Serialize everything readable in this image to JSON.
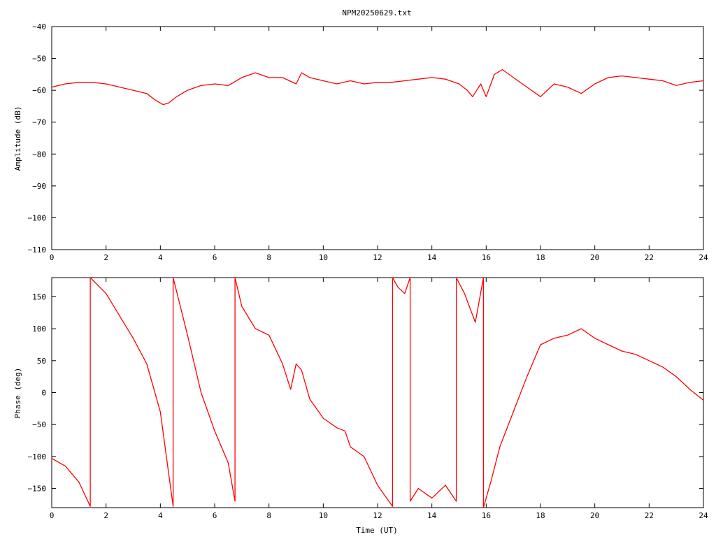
{
  "title": "NPM20250629.txt",
  "line_color": "#ff0000",
  "chart_data": [
    {
      "type": "line",
      "name": "amplitude",
      "title": "NPM20250629.txt",
      "xlabel": "",
      "ylabel": "Amplitude (dB)",
      "xlim": [
        0,
        24
      ],
      "ylim": [
        -110,
        -40
      ],
      "xticks": [
        0,
        2,
        4,
        6,
        8,
        10,
        12,
        14,
        16,
        18,
        20,
        22,
        24
      ],
      "yticks": [
        -40,
        -50,
        -60,
        -70,
        -80,
        -90,
        -100,
        -110
      ],
      "x": [
        0,
        0.5,
        1,
        1.5,
        2,
        2.5,
        3,
        3.5,
        3.8,
        4.1,
        4.3,
        4.6,
        5,
        5.5,
        6,
        6.5,
        7,
        7.5,
        8,
        8.5,
        9,
        9.2,
        9.5,
        10,
        10.5,
        11,
        11.5,
        12,
        12.5,
        13,
        13.5,
        14,
        14.5,
        15,
        15.3,
        15.5,
        15.8,
        16,
        16.3,
        16.6,
        17,
        17.5,
        18,
        18.5,
        19,
        19.5,
        20,
        20.5,
        21,
        21.5,
        22,
        22.5,
        23,
        23.5,
        24
      ],
      "y": [
        -59,
        -58,
        -57.5,
        -57.5,
        -58,
        -59,
        -60,
        -61,
        -63,
        -64.5,
        -64,
        -62,
        -60,
        -58.5,
        -58,
        -58.5,
        -56,
        -54.5,
        -56,
        -56,
        -58,
        -54.5,
        -56,
        -57,
        -58,
        -57,
        -58,
        -57.5,
        -57.5,
        -57,
        -56.5,
        -56,
        -56.5,
        -58,
        -60,
        -62,
        -58,
        -62,
        -55,
        -53.5,
        -56,
        -59,
        -62,
        -58,
        -59,
        -61,
        -58,
        -56,
        -55.5,
        -56,
        -56.5,
        -57,
        -58.5,
        -57.5,
        -57
      ]
    },
    {
      "type": "line",
      "name": "phase",
      "title": "",
      "xlabel": "Time (UT)",
      "ylabel": "Phase (deg)",
      "xlim": [
        0,
        24
      ],
      "ylim": [
        -180,
        180
      ],
      "xticks": [
        0,
        2,
        4,
        6,
        8,
        10,
        12,
        14,
        16,
        18,
        20,
        22,
        24
      ],
      "yticks": [
        150,
        100,
        50,
        0,
        -50,
        -100,
        -150
      ],
      "x": [
        0,
        0.5,
        1,
        1.42,
        1.42,
        2,
        2.5,
        3,
        3.5,
        4,
        4.47,
        4.47,
        5,
        5.5,
        6,
        6.5,
        6.75,
        6.75,
        7,
        7.5,
        8,
        8.5,
        8.8,
        9,
        9.2,
        9.5,
        10,
        10.5,
        10.8,
        11,
        11.5,
        12,
        12.55,
        12.55,
        12.75,
        13.0,
        13.2,
        13.2,
        13.5,
        14,
        14.5,
        14.9,
        14.9,
        15.2,
        15.6,
        15.9,
        15.9,
        16.2,
        16.5,
        17,
        17.5,
        18,
        18.5,
        19,
        19.5,
        20,
        20.5,
        21,
        21.5,
        22,
        22.5,
        23,
        23.5,
        24
      ],
      "y": [
        -103,
        -115,
        -140,
        -178,
        180,
        155,
        120,
        85,
        45,
        -30,
        -178,
        180,
        90,
        0,
        -60,
        -110,
        -170,
        180,
        135,
        100,
        90,
        45,
        5,
        45,
        35,
        -10,
        -40,
        -55,
        -60,
        -85,
        -100,
        -145,
        -178,
        180,
        165,
        155,
        180,
        -170,
        -150,
        -165,
        -145,
        -170,
        180,
        155,
        110,
        180,
        -180,
        -135,
        -85,
        -30,
        25,
        75,
        85,
        90,
        100,
        85,
        75,
        65,
        60,
        50,
        40,
        25,
        5,
        -12
      ]
    }
  ]
}
